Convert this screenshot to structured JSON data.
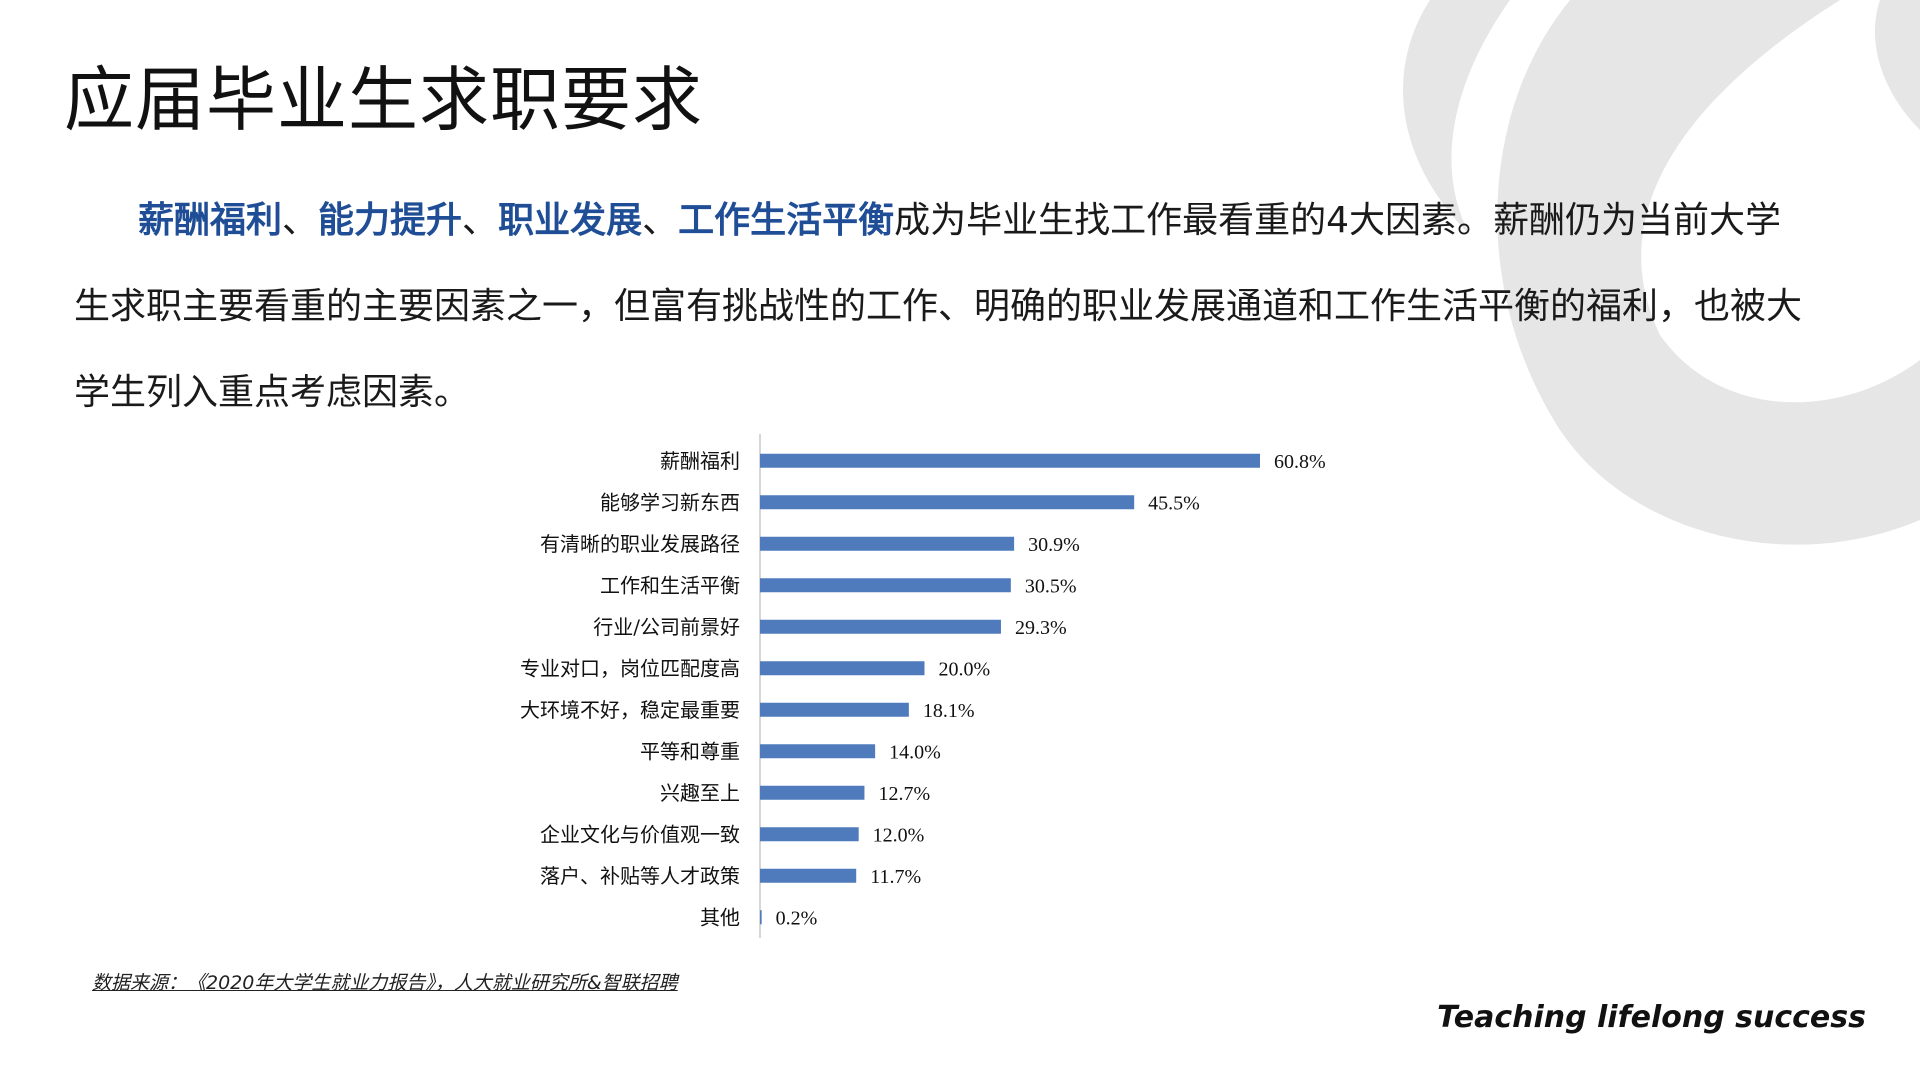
{
  "slide": {
    "title": "应届毕业生求职要求",
    "intro": {
      "highlights": [
        "薪酬福利",
        "能力提升",
        "职业发展",
        "工作生活平衡"
      ],
      "separator": "、",
      "text": "成为毕业生找工作最看重的4大因素。薪酬仍为当前大学生求职主要看重的主要因素之一，但富有挑战性的工作、明确的职业发展通道和工作生活平衡的福利，也被大学生列入重点考虑因素。"
    },
    "source": "数据来源：《2020年大学生就业力报告》，人大就业研究所&智联招聘",
    "slogan": "Teaching lifelong success",
    "colors": {
      "accent": "#1f4e96",
      "bar": "#4f7bbd",
      "logo": "#e6e6e6"
    }
  },
  "chart_data": {
    "type": "bar",
    "orientation": "horizontal",
    "categories": [
      "薪酬福利",
      "能够学习新东西",
      "有清晰的职业发展路径",
      "工作和生活平衡",
      "行业/公司前景好",
      "专业对口，岗位匹配度高",
      "大环境不好，稳定最重要",
      "平等和尊重",
      "兴趣至上",
      "企业文化与价值观一致",
      "落户、补贴等人才政策",
      "其他"
    ],
    "values": [
      60.8,
      45.5,
      30.9,
      30.5,
      29.3,
      20.0,
      18.1,
      14.0,
      12.7,
      12.0,
      11.7,
      0.2
    ],
    "value_labels": [
      "60.8%",
      "45.5%",
      "30.9%",
      "30.5%",
      "29.3%",
      "20.0%",
      "18.1%",
      "14.0%",
      "12.7%",
      "12.0%",
      "11.7%",
      "0.2%"
    ],
    "title": "",
    "xlabel": "",
    "ylabel": "",
    "xlim": [
      0,
      100
    ],
    "grid": false,
    "legend": "none"
  }
}
